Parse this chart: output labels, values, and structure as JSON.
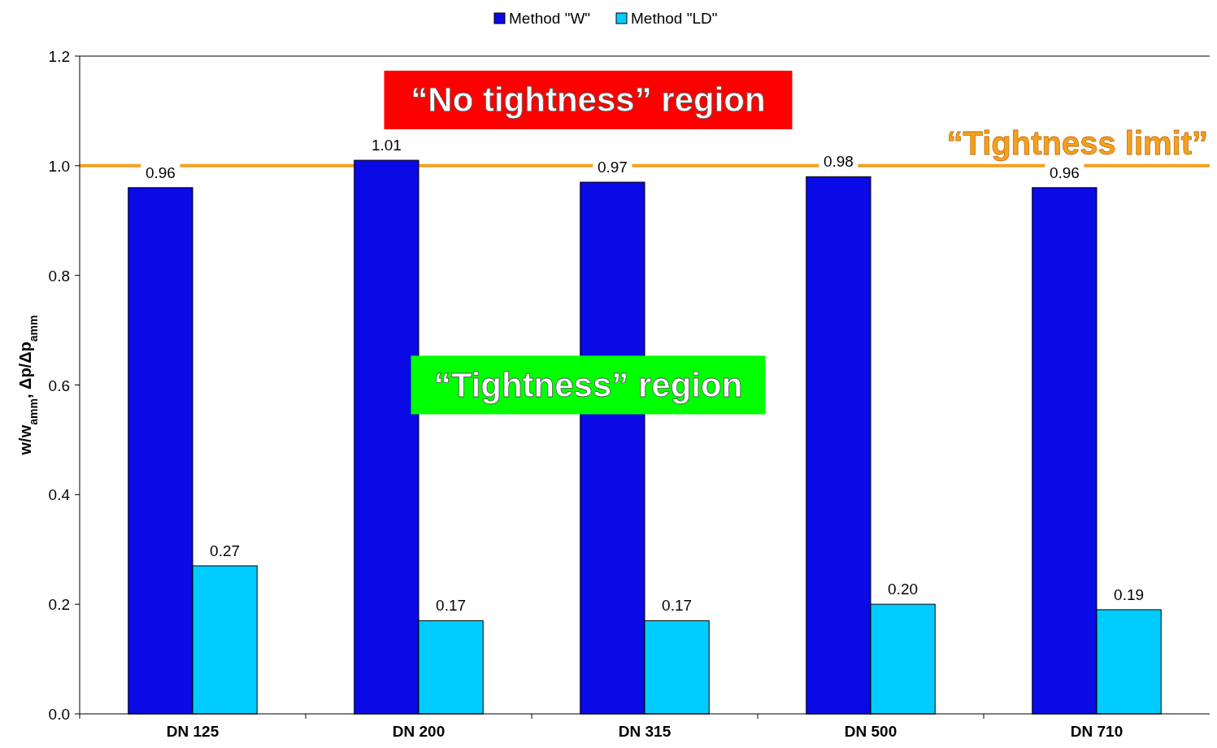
{
  "chart_data": {
    "type": "bar",
    "ylabel": "w/w$_{amm}$, Δp/Δp$_{amm}$",
    "categories": [
      "DN 125",
      "DN 200",
      "DN 315",
      "DN 500",
      "DN 710"
    ],
    "series": [
      {
        "name": "Method \"W\"",
        "color": "#0a0ae6",
        "values": [
          0.96,
          1.01,
          0.97,
          0.98,
          0.96
        ],
        "value_labels": [
          "0.96",
          "1.01",
          "0.97",
          "0.98",
          "0.96"
        ]
      },
      {
        "name": "Method \"LD\"",
        "color": "#00ccff",
        "values": [
          0.27,
          0.17,
          0.17,
          0.2,
          0.19
        ],
        "value_labels": [
          "0.27",
          "0.17",
          "0.17",
          "0.20",
          "0.19"
        ]
      }
    ],
    "ylim": [
      0,
      1.2
    ],
    "yticks": [
      {
        "value": 0,
        "label": "0.0"
      },
      {
        "value": 0.2,
        "label": "0.2"
      },
      {
        "value": 0.4,
        "label": "0.4"
      },
      {
        "value": 0.6,
        "label": "0.6"
      },
      {
        "value": 0.8,
        "label": "0.8"
      },
      {
        "value": 1,
        "label": "1.0"
      },
      {
        "value": 1.2,
        "label": "1.2"
      }
    ],
    "ref_lines": [
      {
        "axis": "y",
        "value": 1,
        "label": "“Tightness limit”",
        "color": "#f5a01e"
      }
    ],
    "annotations": [
      "“No tightness” region",
      "“Tightness” region"
    ],
    "legend": "top",
    "grid": false
  }
}
